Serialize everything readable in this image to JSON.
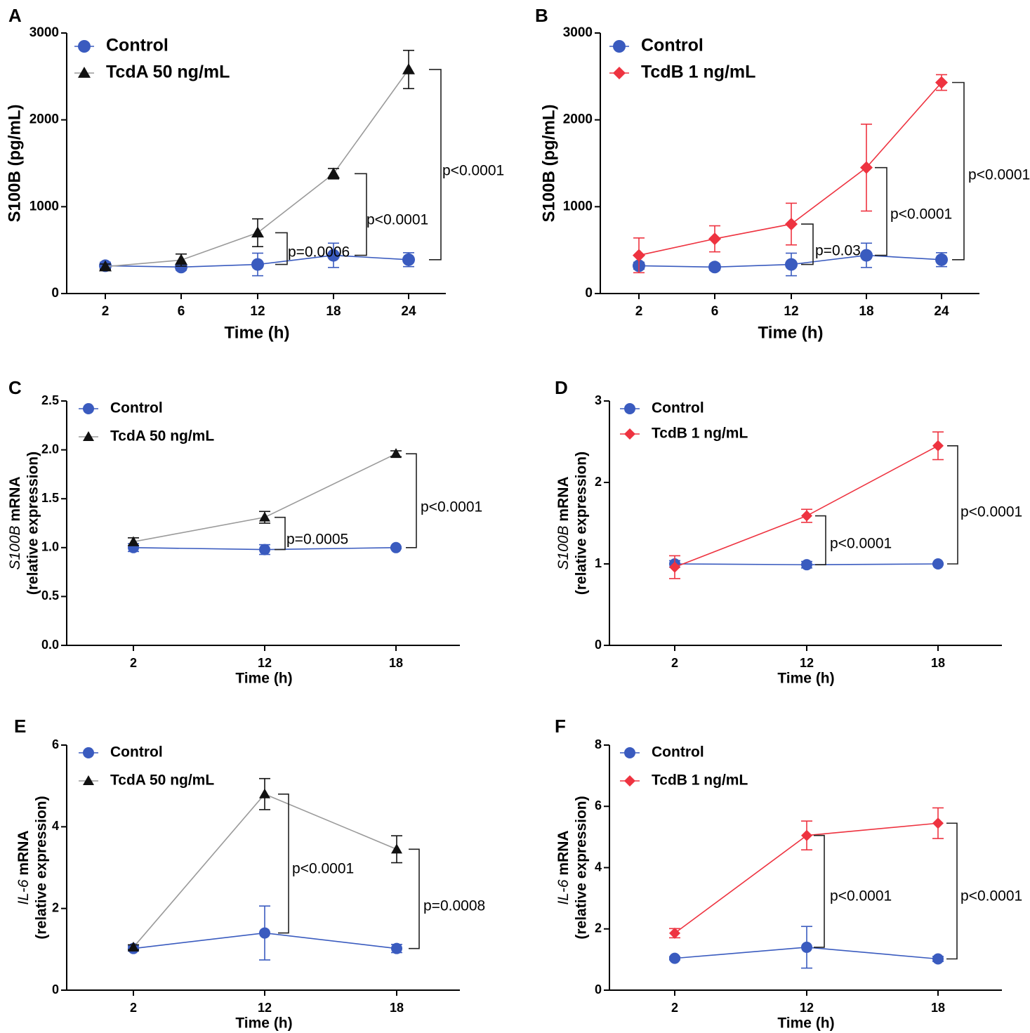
{
  "colors": {
    "control": "#3a5bbf",
    "tcda": "#111111",
    "tcda_line": "#9a9a9a",
    "tcdb": "#ee3340",
    "axis": "#000000"
  },
  "chart_data": [
    {
      "panel": "A",
      "type": "line",
      "x": [
        "2",
        "6",
        "12",
        "18",
        "24"
      ],
      "xlabel": "Time (h)",
      "ylabel": "S100B (pg/mL)",
      "ylim": [
        0,
        3000
      ],
      "yticks": [
        "0",
        "1000",
        "2000",
        "3000"
      ],
      "series": [
        {
          "name": "Control",
          "marker": "circle",
          "values": [
            320,
            305,
            335,
            440,
            390
          ],
          "errors": [
            40,
            35,
            130,
            140,
            80
          ]
        },
        {
          "name": "TcdA 50 ng/mL",
          "marker": "triangle",
          "values": [
            310,
            385,
            700,
            1380,
            2580
          ],
          "errors": [
            30,
            70,
            160,
            60,
            220
          ]
        }
      ],
      "annotations": [
        {
          "label": "p=0.0006",
          "x": "12"
        },
        {
          "label": "p<0.0001",
          "x": "18"
        },
        {
          "label": "p<0.0001",
          "x": "24"
        }
      ]
    },
    {
      "panel": "B",
      "type": "line",
      "x": [
        "2",
        "6",
        "12",
        "18",
        "24"
      ],
      "xlabel": "Time (h)",
      "ylabel": "S100B (pg/mL)",
      "ylim": [
        0,
        3000
      ],
      "yticks": [
        "0",
        "1000",
        "2000",
        "3000"
      ],
      "series": [
        {
          "name": "Control",
          "marker": "circle",
          "values": [
            320,
            305,
            335,
            440,
            390
          ],
          "errors": [
            40,
            35,
            130,
            140,
            80
          ]
        },
        {
          "name": "TcdB 1 ng/mL",
          "marker": "diamond",
          "values": [
            440,
            630,
            800,
            1450,
            2430
          ],
          "errors": [
            200,
            150,
            240,
            500,
            90
          ]
        }
      ],
      "annotations": [
        {
          "label": "p=0.03",
          "x": "12"
        },
        {
          "label": "p<0.0001",
          "x": "18"
        },
        {
          "label": "p<0.0001",
          "x": "24"
        }
      ]
    },
    {
      "panel": "C",
      "type": "line",
      "x": [
        "2",
        "12",
        "18"
      ],
      "xlabel": "Time (h)",
      "ylabel": "S100B mRNA",
      "ylabel2": "(relative expression)",
      "ylim": [
        0,
        2.5
      ],
      "yticks": [
        "0.0",
        "0.5",
        "1.0",
        "1.5",
        "2.0",
        "2.5"
      ],
      "series": [
        {
          "name": "Control",
          "marker": "circle",
          "values": [
            1.0,
            0.98,
            1.0
          ],
          "errors": [
            0.04,
            0.05,
            0.01
          ]
        },
        {
          "name": "TcdA 50 ng/mL",
          "marker": "triangle",
          "values": [
            1.06,
            1.31,
            1.96
          ],
          "errors": [
            0.04,
            0.06,
            0.03
          ]
        }
      ],
      "annotations": [
        {
          "label": "p=0.0005",
          "x": "12"
        },
        {
          "label": "p<0.0001",
          "x": "18"
        }
      ]
    },
    {
      "panel": "D",
      "type": "line",
      "x": [
        "2",
        "12",
        "18"
      ],
      "xlabel": "Time (h)",
      "ylabel": "S100B mRNA",
      "ylabel2": "(relative expression)",
      "ylim": [
        0,
        3
      ],
      "yticks": [
        "0",
        "1",
        "2",
        "3"
      ],
      "series": [
        {
          "name": "Control",
          "marker": "circle",
          "values": [
            1.0,
            0.99,
            1.0
          ],
          "errors": [
            0.04,
            0.04,
            0.01
          ]
        },
        {
          "name": "TcdB 1 ng/mL",
          "marker": "diamond",
          "values": [
            0.96,
            1.59,
            2.45
          ],
          "errors": [
            0.14,
            0.08,
            0.17
          ]
        }
      ],
      "annotations": [
        {
          "label": "p<0.0001",
          "x": "12"
        },
        {
          "label": "p<0.0001",
          "x": "18"
        }
      ]
    },
    {
      "panel": "E",
      "type": "line",
      "x": [
        "2",
        "12",
        "18"
      ],
      "xlabel": "Time (h)",
      "ylabel": "IL-6 mRNA",
      "ylabel2": "(relative expression)",
      "ylim": [
        0,
        6
      ],
      "yticks": [
        "0",
        "2",
        "4",
        "6"
      ],
      "series": [
        {
          "name": "Control",
          "marker": "circle",
          "values": [
            1.02,
            1.4,
            1.02
          ],
          "errors": [
            0.06,
            0.66,
            0.1
          ]
        },
        {
          "name": "TcdA 50 ng/mL",
          "marker": "triangle",
          "values": [
            1.05,
            4.8,
            3.45
          ],
          "errors": [
            0.06,
            0.38,
            0.33
          ]
        }
      ],
      "annotations": [
        {
          "label": "p<0.0001",
          "x": "12"
        },
        {
          "label": "p=0.0008",
          "x": "18"
        }
      ]
    },
    {
      "panel": "F",
      "type": "line",
      "x": [
        "2",
        "12",
        "18"
      ],
      "xlabel": "Time (h)",
      "ylabel": "IL-6 mRNA",
      "ylabel2": "(relative expression)",
      "ylim": [
        0,
        8
      ],
      "yticks": [
        "0",
        "2",
        "4",
        "6",
        "8"
      ],
      "series": [
        {
          "name": "Control",
          "marker": "circle",
          "values": [
            1.04,
            1.4,
            1.02
          ],
          "errors": [
            0.05,
            0.68,
            0.08
          ]
        },
        {
          "name": "TcdB 1 ng/mL",
          "marker": "diamond",
          "values": [
            1.86,
            5.05,
            5.45
          ],
          "errors": [
            0.15,
            0.47,
            0.5
          ]
        }
      ],
      "annotations": [
        {
          "label": "p<0.0001",
          "x": "12"
        },
        {
          "label": "p<0.0001",
          "x": "18"
        }
      ]
    }
  ]
}
